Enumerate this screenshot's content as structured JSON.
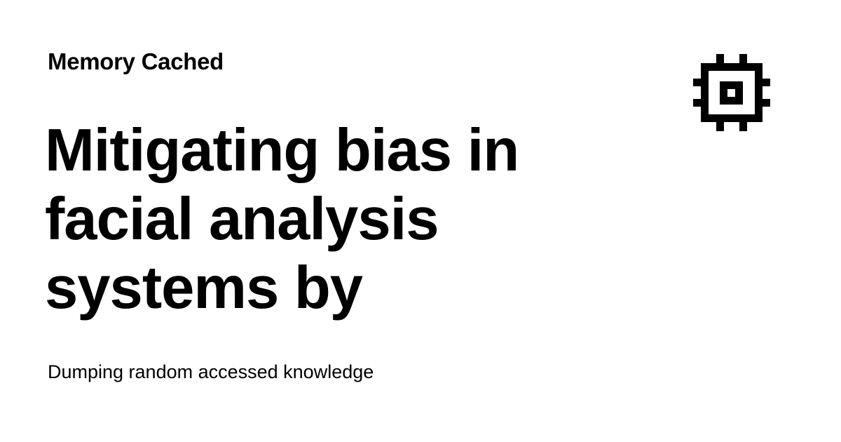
{
  "site": {
    "name": "Memory Cached",
    "tagline": "Dumping random accessed knowledge",
    "logo_icon": "cpu-chip-icon"
  },
  "post": {
    "title": "Mitigating bias in facial analysis systems by"
  },
  "colors": {
    "background": "#ffffff",
    "foreground": "#000000"
  }
}
